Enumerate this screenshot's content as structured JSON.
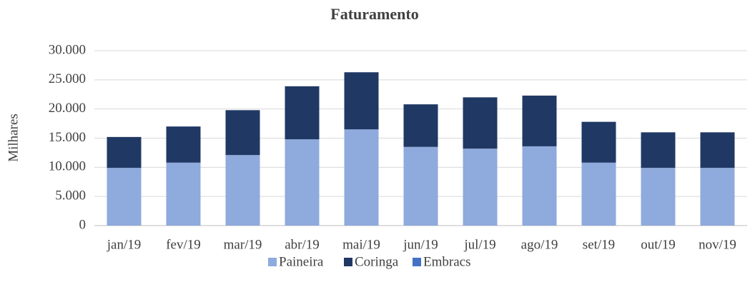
{
  "chart_data": {
    "type": "stacked-bar",
    "title": "Faturamento",
    "y_label": "Milhares",
    "categories": [
      "jan/19",
      "fev/19",
      "mar/19",
      "abr/19",
      "mai/19",
      "jun/19",
      "jul/19",
      "ago/19",
      "set/19",
      "out/19",
      "nov/19"
    ],
    "series": [
      {
        "name": "Paineira",
        "color": "#8faadc",
        "values": [
          9900,
          10800,
          12100,
          14800,
          16500,
          13500,
          13200,
          13600,
          10800,
          9900,
          9900
        ]
      },
      {
        "name": "Coringa",
        "color": "#203864",
        "values": [
          5300,
          6200,
          7700,
          9100,
          9800,
          7300,
          8800,
          8700,
          7000,
          6100,
          6100
        ]
      },
      {
        "name": "Embracs",
        "color": "#4472c4",
        "values": [
          0,
          0,
          0,
          0,
          0,
          0,
          0,
          0,
          0,
          0,
          0
        ]
      }
    ],
    "ylim": [
      0,
      30000
    ],
    "yticks": [
      0,
      {
        "value": 5000,
        "label": "5.000"
      },
      {
        "value": 10000,
        "label": "10.000"
      },
      {
        "value": 15000,
        "label": "15.000"
      },
      {
        "value": 20000,
        "label": "20.000"
      },
      {
        "value": 25000,
        "label": "25.000"
      },
      {
        "value": 30000,
        "label": "30.000"
      }
    ],
    "grid": true,
    "legend": "bottom"
  }
}
